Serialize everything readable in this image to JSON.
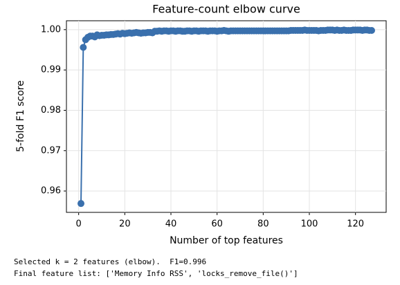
{
  "chart_data": {
    "type": "line",
    "title": "Feature-count elbow curve",
    "x_label": "Number of top features",
    "y_label": "5-fold F1 score",
    "x": [
      1,
      2,
      3,
      4,
      5,
      6,
      7,
      8,
      9,
      10,
      11,
      12,
      13,
      14,
      15,
      16,
      17,
      18,
      19,
      20,
      21,
      22,
      23,
      24,
      25,
      26,
      27,
      28,
      29,
      30,
      31,
      32,
      33,
      34,
      35,
      36,
      37,
      38,
      39,
      40,
      41,
      42,
      43,
      44,
      45,
      46,
      47,
      48,
      49,
      50,
      51,
      52,
      53,
      54,
      55,
      56,
      57,
      58,
      59,
      60,
      61,
      62,
      63,
      64,
      65,
      66,
      67,
      68,
      69,
      70,
      71,
      72,
      73,
      74,
      75,
      76,
      77,
      78,
      79,
      80,
      81,
      82,
      83,
      84,
      85,
      86,
      87,
      88,
      89,
      90,
      91,
      92,
      93,
      94,
      95,
      96,
      97,
      98,
      99,
      100,
      101,
      102,
      103,
      104,
      105,
      106,
      107,
      108,
      109,
      110,
      111,
      112,
      113,
      114,
      115,
      116,
      117,
      118,
      119,
      120,
      121,
      122,
      123,
      124,
      125,
      126,
      127
    ],
    "series": [
      {
        "color": "#3a70ad",
        "values": [
          0.9569,
          0.9956,
          0.9975,
          0.9981,
          0.9984,
          0.9984,
          0.9982,
          0.9987,
          0.9985,
          0.9986,
          0.9986,
          0.9987,
          0.9987,
          0.9988,
          0.9988,
          0.9989,
          0.999,
          0.9989,
          0.9991,
          0.999,
          0.9991,
          0.9992,
          0.9991,
          0.9992,
          0.9993,
          0.9992,
          0.9991,
          0.9992,
          0.9992,
          0.9993,
          0.9993,
          0.9992,
          0.9996,
          0.9996,
          0.9997,
          0.9996,
          0.9997,
          0.9997,
          0.9996,
          0.9997,
          0.9997,
          0.9996,
          0.9997,
          0.9997,
          0.9996,
          0.9996,
          0.9997,
          0.9997,
          0.9996,
          0.9997,
          0.9997,
          0.9996,
          0.9997,
          0.9997,
          0.9997,
          0.9996,
          0.9997,
          0.9997,
          0.9997,
          0.9996,
          0.9997,
          0.9997,
          0.9998,
          0.9997,
          0.9996,
          0.9997,
          0.9997,
          0.9997,
          0.9997,
          0.9997,
          0.9997,
          0.9997,
          0.9997,
          0.9997,
          0.9997,
          0.9997,
          0.9997,
          0.9997,
          0.9997,
          0.9997,
          0.9997,
          0.9997,
          0.9997,
          0.9997,
          0.9997,
          0.9997,
          0.9997,
          0.9997,
          0.9997,
          0.9997,
          0.9997,
          0.9998,
          0.9998,
          0.9998,
          0.9998,
          0.9998,
          0.9998,
          0.9999,
          0.9998,
          0.9998,
          0.9998,
          0.9998,
          0.9998,
          0.9997,
          0.9998,
          0.9998,
          0.9998,
          0.9999,
          0.9999,
          0.9999,
          0.9998,
          0.9999,
          0.9998,
          0.9998,
          0.9999,
          0.9998,
          0.9998,
          0.9998,
          0.9999,
          0.9999,
          0.9999,
          0.9999,
          0.9998,
          0.9999,
          0.9999,
          0.9998,
          0.9998
        ]
      }
    ],
    "xlim": [
      -5.3,
      133.3
    ],
    "xticks": [
      0,
      20,
      40,
      60,
      80,
      100,
      120
    ],
    "ylim": [
      0.9547,
      1.0022
    ],
    "yticks": [
      0.96,
      0.97,
      0.98,
      0.99,
      {
        "value": 1,
        "label": "1.00"
      }
    ],
    "grid": true
  },
  "notes": [
    "Selected k = 2 features (elbow).  F1=0.996",
    "Final feature list: ['Memory Info RSS', 'locks_remove_file()']"
  ]
}
